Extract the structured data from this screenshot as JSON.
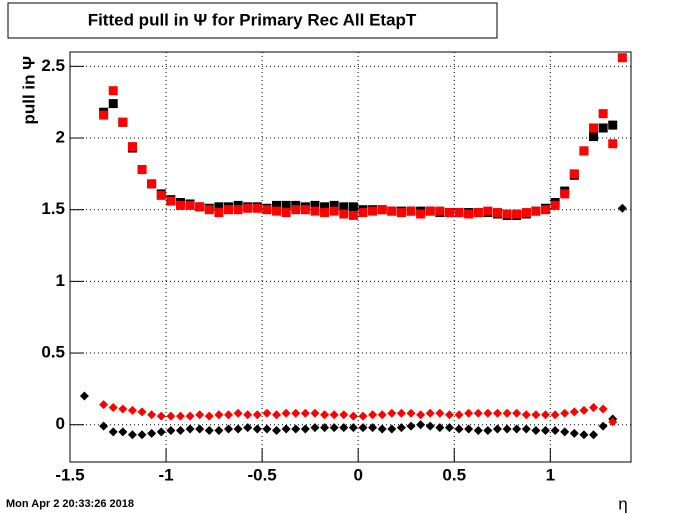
{
  "chart_data": {
    "type": "scatter",
    "title": "Fitted pull in  Ψ  for Primary Rec All EtapT",
    "y_label": "pull in Ψ",
    "x_label": "η",
    "footer": "Mon Apr  2 20:33:26 2018",
    "x": [
      -1.425,
      -1.375,
      -1.325,
      -1.275,
      -1.225,
      -1.175,
      -1.125,
      -1.075,
      -1.025,
      -0.975,
      -0.925,
      -0.875,
      -0.825,
      -0.775,
      -0.725,
      -0.675,
      -0.625,
      -0.575,
      -0.525,
      -0.475,
      -0.425,
      -0.375,
      -0.325,
      -0.275,
      -0.225,
      -0.175,
      -0.125,
      -0.075,
      -0.025,
      0.025,
      0.075,
      0.125,
      0.175,
      0.225,
      0.275,
      0.325,
      0.375,
      0.425,
      0.475,
      0.525,
      0.575,
      0.625,
      0.675,
      0.725,
      0.775,
      0.825,
      0.875,
      0.925,
      0.975,
      1.025,
      1.075,
      1.125,
      1.175,
      1.225,
      1.275,
      1.325,
      1.375
    ],
    "series": [
      {
        "color": "#000000",
        "marker": "square",
        "values": [
          null,
          null,
          2.18,
          2.24,
          2.11,
          1.93,
          1.78,
          1.68,
          1.61,
          1.57,
          1.55,
          1.54,
          1.52,
          1.51,
          1.52,
          1.52,
          1.53,
          1.52,
          1.52,
          1.51,
          1.53,
          1.53,
          1.53,
          1.52,
          1.53,
          1.52,
          1.53,
          1.52,
          1.52,
          1.5,
          1.5,
          1.5,
          1.49,
          1.49,
          1.49,
          1.49,
          1.49,
          1.48,
          1.48,
          1.48,
          1.48,
          1.48,
          1.48,
          1.47,
          1.46,
          1.46,
          1.47,
          1.49,
          1.51,
          1.55,
          1.63,
          1.74,
          1.91,
          2.01,
          2.07,
          2.09,
          null
        ]
      },
      {
        "color": "#ff0000",
        "marker": "square",
        "values": [
          null,
          null,
          2.16,
          2.33,
          2.11,
          1.94,
          1.78,
          1.68,
          1.6,
          1.56,
          1.53,
          1.53,
          1.52,
          1.5,
          1.48,
          1.5,
          1.5,
          1.51,
          1.51,
          1.5,
          1.49,
          1.48,
          1.5,
          1.5,
          1.49,
          1.48,
          1.49,
          1.47,
          1.46,
          1.48,
          1.49,
          1.5,
          1.49,
          1.48,
          1.49,
          1.47,
          1.49,
          1.49,
          1.48,
          1.48,
          1.47,
          1.48,
          1.49,
          1.48,
          1.47,
          1.47,
          1.48,
          1.49,
          1.5,
          1.53,
          1.61,
          1.75,
          1.91,
          2.07,
          2.17,
          1.96,
          2.56
        ]
      },
      {
        "color": "#000000",
        "marker": "diamond",
        "values": [
          0.2,
          null,
          -0.01,
          -0.05,
          -0.05,
          -0.07,
          -0.07,
          -0.06,
          -0.05,
          -0.04,
          -0.04,
          -0.03,
          -0.03,
          -0.04,
          -0.04,
          -0.03,
          -0.03,
          -0.02,
          -0.03,
          -0.03,
          -0.04,
          -0.03,
          -0.03,
          -0.03,
          -0.02,
          -0.02,
          -0.02,
          -0.02,
          -0.02,
          -0.02,
          -0.02,
          -0.03,
          -0.03,
          -0.02,
          -0.01,
          0.0,
          -0.01,
          -0.02,
          -0.02,
          -0.03,
          -0.03,
          -0.04,
          -0.04,
          -0.03,
          -0.03,
          -0.03,
          -0.03,
          -0.04,
          -0.04,
          -0.04,
          -0.05,
          -0.06,
          -0.07,
          -0.07,
          -0.01,
          0.04,
          1.51
        ]
      },
      {
        "color": "#ff0000",
        "marker": "diamond",
        "values": [
          null,
          null,
          0.14,
          0.12,
          0.11,
          0.1,
          0.09,
          0.07,
          0.06,
          0.06,
          0.06,
          0.06,
          0.07,
          0.06,
          0.07,
          0.07,
          0.08,
          0.07,
          0.07,
          0.08,
          0.07,
          0.08,
          0.08,
          0.08,
          0.08,
          0.07,
          0.07,
          0.07,
          0.06,
          0.06,
          0.07,
          0.07,
          0.08,
          0.08,
          0.08,
          0.07,
          0.08,
          0.08,
          0.07,
          0.07,
          0.08,
          0.08,
          0.08,
          0.08,
          0.08,
          0.08,
          0.07,
          0.07,
          0.07,
          0.07,
          0.08,
          0.09,
          0.1,
          0.12,
          0.11,
          0.02,
          null
        ]
      }
    ],
    "xlim": [
      -1.5,
      1.42
    ],
    "ylim": [
      -0.26,
      2.6
    ],
    "xticks": [
      -1.5,
      -1,
      -0.5,
      0,
      0.5,
      1
    ],
    "yticks": [
      0,
      0.5,
      1,
      1.5,
      2,
      2.5
    ],
    "grid": true
  }
}
